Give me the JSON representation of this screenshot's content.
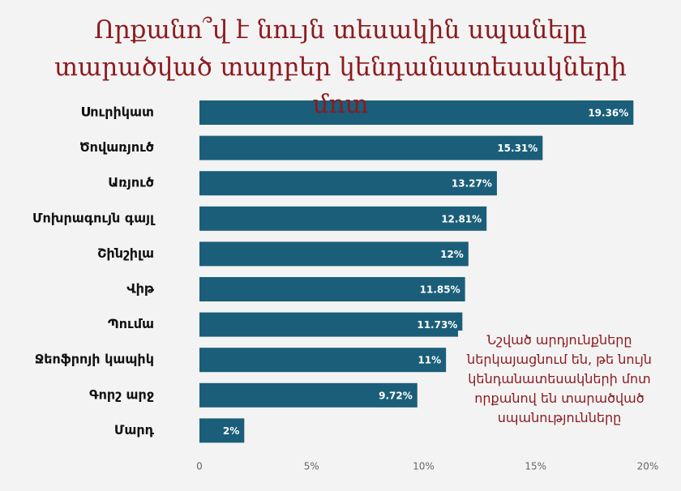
{
  "chart_data": {
    "type": "bar",
    "orientation": "horizontal",
    "title": "Որքանո՞վ է նույն տեսակին սպանելը տարածված տարբեր կենդանատեսակների մոտ",
    "annotation": "Նշված արդյունքները ներկայացնում են, թե նույն կենդանատեսակների մոտ որքանով են տարածված սպանությունները",
    "categories": [
      "Սուրիկատ",
      "Ծովառյուծ",
      "Առյուծ",
      "Մոխրագույն գայլ",
      "Շինշիլա",
      "Վիթ",
      "Պումա",
      "Ջեոֆրոյի կապիկ",
      "Գորշ արջ",
      "Մարդ"
    ],
    "values": [
      19.36,
      15.31,
      13.27,
      12.81,
      12,
      11.85,
      11.73,
      11,
      9.72,
      2
    ],
    "value_labels": [
      "19.36%",
      "15.31%",
      "13.27%",
      "12.81%",
      "12%",
      "11.85%",
      "11.73%",
      "11%",
      "9.72%",
      "2%"
    ],
    "color": "#1b5e79",
    "xlim": [
      0,
      20
    ],
    "xticks": [
      0,
      {
        "value": 5,
        "label": "5%"
      },
      {
        "value": 10,
        "label": "10%"
      },
      {
        "value": 15,
        "label": "15%"
      },
      {
        "value": 20,
        "label": "20%"
      }
    ],
    "grid": false
  }
}
